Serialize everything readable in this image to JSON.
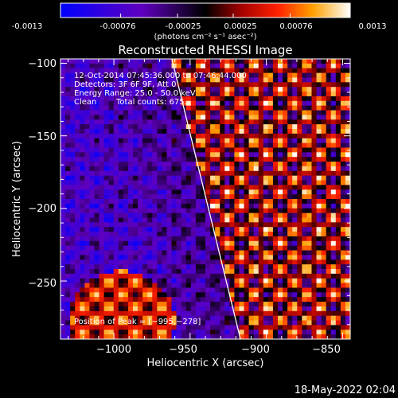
{
  "colorbar": {
    "tick_labels": [
      "-0.0013",
      "-0.00076",
      "-0.00025",
      "0.00025",
      "0.00076",
      "0.0013"
    ],
    "tick_values": [
      -0.0013,
      -0.00076,
      -0.00025,
      0.00025,
      0.00076,
      0.0013
    ],
    "range": [
      -0.0013,
      0.0013
    ],
    "unit_label": "(photons cm⁻² s⁻¹ asec⁻²)"
  },
  "chart_data": {
    "type": "heatmap",
    "title": "Reconstructed RHESSI Image",
    "xlabel": "Heliocentric X (arcsec)",
    "ylabel": "Heliocentric Y (arcsec)",
    "xlim": [
      -1035,
      -845
    ],
    "ylim": [
      -290,
      -97
    ],
    "x_ticks": [
      -1000,
      -950,
      -900,
      -850
    ],
    "y_ticks": [
      -100,
      -150,
      -200,
      -250
    ],
    "x_tick_labels": [
      "−1000",
      "−950",
      "−900",
      "−850"
    ],
    "y_tick_labels": [
      "−100",
      "−150",
      "−200",
      "−250"
    ],
    "limb_line": [
      [
        -962,
        -97
      ],
      [
        -917,
        -290
      ]
    ],
    "peak": [
      -995,
      -278
    ],
    "annotations": {
      "time": "12-Oct-2014 07:45:36.000 to 07:46:44.000",
      "detectors": "Detectors: 3F 6F 9F, Att 0",
      "energy": "Energy Range: 25.0 - 50.0 keV",
      "clean": "Clean",
      "counts": "Total counts: 675.",
      "peak_text": "Position of Peak = [−995,−278]"
    }
  },
  "footer": {
    "timestamp": "18-May-2022 02:04"
  }
}
